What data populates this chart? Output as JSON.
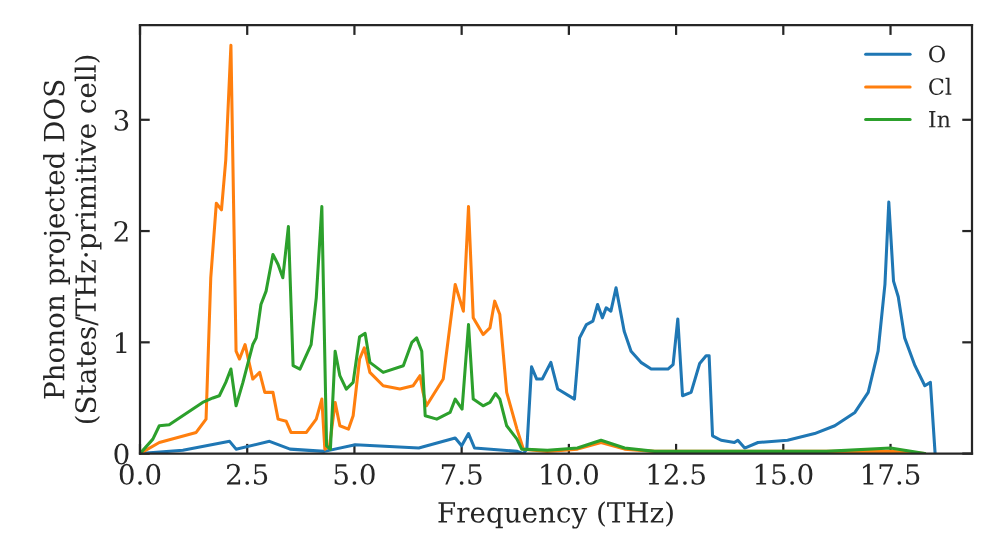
{
  "chart_data": {
    "type": "line",
    "xlabel": "Frequency (THz)",
    "ylabel": "Phonon projected DOS\n(States/THz·primitive cell)",
    "xlim": [
      0,
      19.4
    ],
    "ylim": [
      0,
      3.85
    ],
    "xticks": [
      {
        "value": 0,
        "label": "0.0"
      },
      {
        "value": 2.5,
        "label": "2.5"
      },
      {
        "value": 5,
        "label": "5.0"
      },
      {
        "value": 7.5,
        "label": "7.5"
      },
      {
        "value": 10,
        "label": "10.0"
      },
      {
        "value": 12.5,
        "label": "12.5"
      },
      {
        "value": 15,
        "label": "15.0"
      },
      {
        "value": 17.5,
        "label": "17.5"
      }
    ],
    "yticks": [
      0,
      1,
      2,
      3
    ],
    "legend": "top right",
    "grid": false,
    "series": [
      {
        "name": "O",
        "color": "#1f77b4",
        "x": [
          0,
          1.0,
          2.09,
          2.24,
          3.02,
          3.5,
          4.3,
          5.02,
          6.5,
          7.35,
          7.5,
          7.66,
          7.8,
          8.8,
          8.94,
          9.02,
          9.13,
          9.25,
          9.38,
          9.58,
          9.74,
          10.13,
          10.25,
          10.41,
          10.56,
          10.67,
          10.78,
          10.87,
          10.98,
          11.1,
          11.29,
          11.45,
          11.68,
          11.92,
          12.31,
          12.43,
          12.54,
          12.65,
          12.85,
          13.05,
          13.2,
          13.27,
          13.35,
          13.55,
          13.86,
          13.94,
          14.1,
          14.41,
          15.1,
          15.73,
          16.2,
          16.67,
          16.98,
          17.21,
          17.37,
          17.46,
          17.57,
          17.68,
          17.83,
          18.07,
          18.3,
          18.43,
          18.54
        ],
        "values": [
          0,
          0.03,
          0.11,
          0.04,
          0.11,
          0.04,
          0.02,
          0.08,
          0.05,
          0.14,
          0.07,
          0.18,
          0.05,
          0.02,
          0,
          0.04,
          0.78,
          0.67,
          0.67,
          0.82,
          0.58,
          0.49,
          1.04,
          1.16,
          1.19,
          1.34,
          1.22,
          1.31,
          1.28,
          1.49,
          1.1,
          0.92,
          0.82,
          0.76,
          0.76,
          0.8,
          1.21,
          0.52,
          0.55,
          0.81,
          0.88,
          0.88,
          0.16,
          0.12,
          0.1,
          0.12,
          0.05,
          0.1,
          0.12,
          0.18,
          0.25,
          0.37,
          0.55,
          0.92,
          1.52,
          2.26,
          1.55,
          1.41,
          1.04,
          0.79,
          0.61,
          0.64,
          0
        ]
      },
      {
        "name": "Cl",
        "color": "#ff7f0e",
        "x": [
          0,
          0.45,
          1.31,
          1.54,
          1.65,
          1.78,
          1.9,
          2.0,
          2.12,
          2.24,
          2.32,
          2.45,
          2.63,
          2.79,
          2.91,
          3.1,
          3.22,
          3.41,
          3.52,
          3.88,
          4.11,
          4.24,
          4.31,
          4.42,
          4.55,
          4.66,
          4.86,
          4.97,
          5.12,
          5.23,
          5.36,
          5.67,
          6.06,
          6.37,
          6.53,
          6.6,
          6.68,
          7.07,
          7.35,
          7.54,
          7.66,
          7.77,
          8.0,
          8.16,
          8.27,
          8.39,
          8.55,
          8.79,
          8.94,
          9.5,
          10.2,
          10.75,
          11.3,
          12.0,
          14.0,
          16.0,
          17.5,
          18.3
        ],
        "values": [
          0,
          0.1,
          0.19,
          0.31,
          1.58,
          2.25,
          2.19,
          2.64,
          3.67,
          0.92,
          0.85,
          0.98,
          0.67,
          0.73,
          0.55,
          0.55,
          0.31,
          0.29,
          0.19,
          0.19,
          0.31,
          0.49,
          0.04,
          0.07,
          0.46,
          0.25,
          0.22,
          0.34,
          0.85,
          0.95,
          0.73,
          0.61,
          0.58,
          0.61,
          0.7,
          0.55,
          0.43,
          0.67,
          1.52,
          1.28,
          2.22,
          1.22,
          1.07,
          1.13,
          1.37,
          1.25,
          0.55,
          0.22,
          0.04,
          0.02,
          0.04,
          0.1,
          0.04,
          0.02,
          null,
          null,
          0.02,
          0
        ]
      },
      {
        "name": "In",
        "color": "#2ca02c",
        "x": [
          0,
          0.3,
          0.45,
          0.68,
          1.46,
          1.7,
          1.85,
          2.0,
          2.12,
          2.24,
          2.4,
          2.63,
          2.71,
          2.82,
          2.94,
          3.1,
          3.22,
          3.33,
          3.46,
          3.57,
          3.73,
          3.99,
          4.11,
          4.24,
          4.35,
          4.44,
          4.55,
          4.66,
          4.81,
          4.97,
          5.12,
          5.25,
          5.36,
          5.67,
          6.14,
          6.34,
          6.45,
          6.57,
          6.65,
          6.92,
          7.23,
          7.35,
          7.51,
          7.66,
          7.77,
          8.0,
          8.16,
          8.29,
          8.39,
          8.55,
          8.79,
          8.9,
          9.5,
          10.2,
          10.75,
          11.3,
          12.0,
          14.0,
          16.0,
          17.5,
          18.3
        ],
        "values": [
          0,
          0.13,
          0.25,
          0.26,
          0.46,
          0.5,
          0.52,
          0.64,
          0.76,
          0.43,
          0.64,
          0.98,
          1.04,
          1.34,
          1.46,
          1.79,
          1.7,
          1.58,
          2.04,
          0.79,
          0.76,
          0.98,
          1.4,
          2.22,
          0.07,
          0.04,
          0.92,
          0.7,
          0.58,
          0.64,
          1.05,
          1.08,
          0.82,
          0.73,
          0.79,
          1.0,
          1.04,
          0.92,
          0.34,
          0.31,
          0.37,
          0.49,
          0.4,
          1.16,
          0.49,
          0.43,
          0.46,
          0.54,
          0.49,
          0.25,
          0.13,
          0.04,
          0.03,
          0.05,
          0.12,
          0.05,
          0.02,
          0.02,
          0.02,
          0.05,
          0
        ]
      }
    ]
  }
}
